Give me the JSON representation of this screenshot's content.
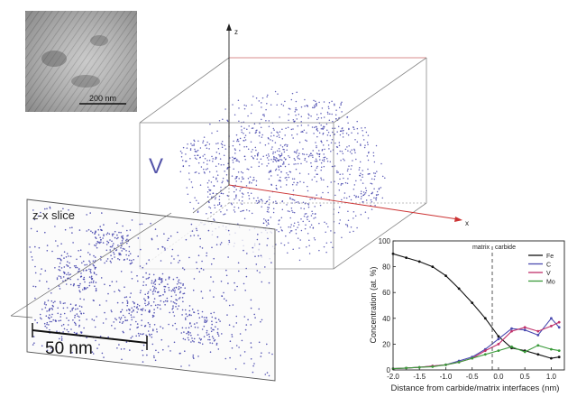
{
  "tem": {
    "scale_label": "200 nm"
  },
  "box3d": {
    "element_label": "V",
    "axis_z": "z",
    "axis_x": "x",
    "dot_color": "#3a3aa8"
  },
  "slice": {
    "title": "z-x slice",
    "scale_label": "50 nm"
  },
  "chart_data": {
    "type": "line",
    "xlabel": "Distance from carbide/matrix interfaces (nm)",
    "ylabel": "Concentration (at. %)",
    "xlim": [
      -2.0,
      1.25
    ],
    "ylim": [
      0,
      100
    ],
    "xticks": [
      "-2.0",
      "-1.5",
      "-1.0",
      "-0.5",
      "0.0",
      "0.5",
      "1.0"
    ],
    "yticks": [
      "0",
      "20",
      "40",
      "60",
      "80",
      "100"
    ],
    "region_labels": {
      "left": "matrix",
      "right": "carbide"
    },
    "legend_position": "top-right",
    "x": [
      -2.0,
      -1.75,
      -1.5,
      -1.25,
      -1.0,
      -0.75,
      -0.5,
      -0.25,
      0.0,
      0.25,
      0.5,
      0.75,
      1.0,
      1.15
    ],
    "series": [
      {
        "name": "Fe",
        "color": "#111111",
        "values": [
          90,
          87,
          84,
          80,
          73,
          63,
          52,
          40,
          26,
          17,
          15,
          12,
          9,
          10
        ]
      },
      {
        "name": "C",
        "color": "#4a4ab0",
        "values": [
          1,
          1.5,
          2,
          3,
          4,
          7,
          10,
          16,
          24,
          32,
          31,
          27,
          40,
          33
        ]
      },
      {
        "name": "V",
        "color": "#c0306a",
        "values": [
          1,
          1.5,
          2,
          3,
          4,
          6,
          9,
          15,
          20,
          30,
          33,
          30,
          34,
          37
        ]
      },
      {
        "name": "Mo",
        "color": "#3a9a3a",
        "values": [
          1,
          1.5,
          2,
          2.5,
          4,
          6,
          9,
          12,
          15,
          18,
          14,
          19,
          16,
          15
        ]
      }
    ]
  }
}
